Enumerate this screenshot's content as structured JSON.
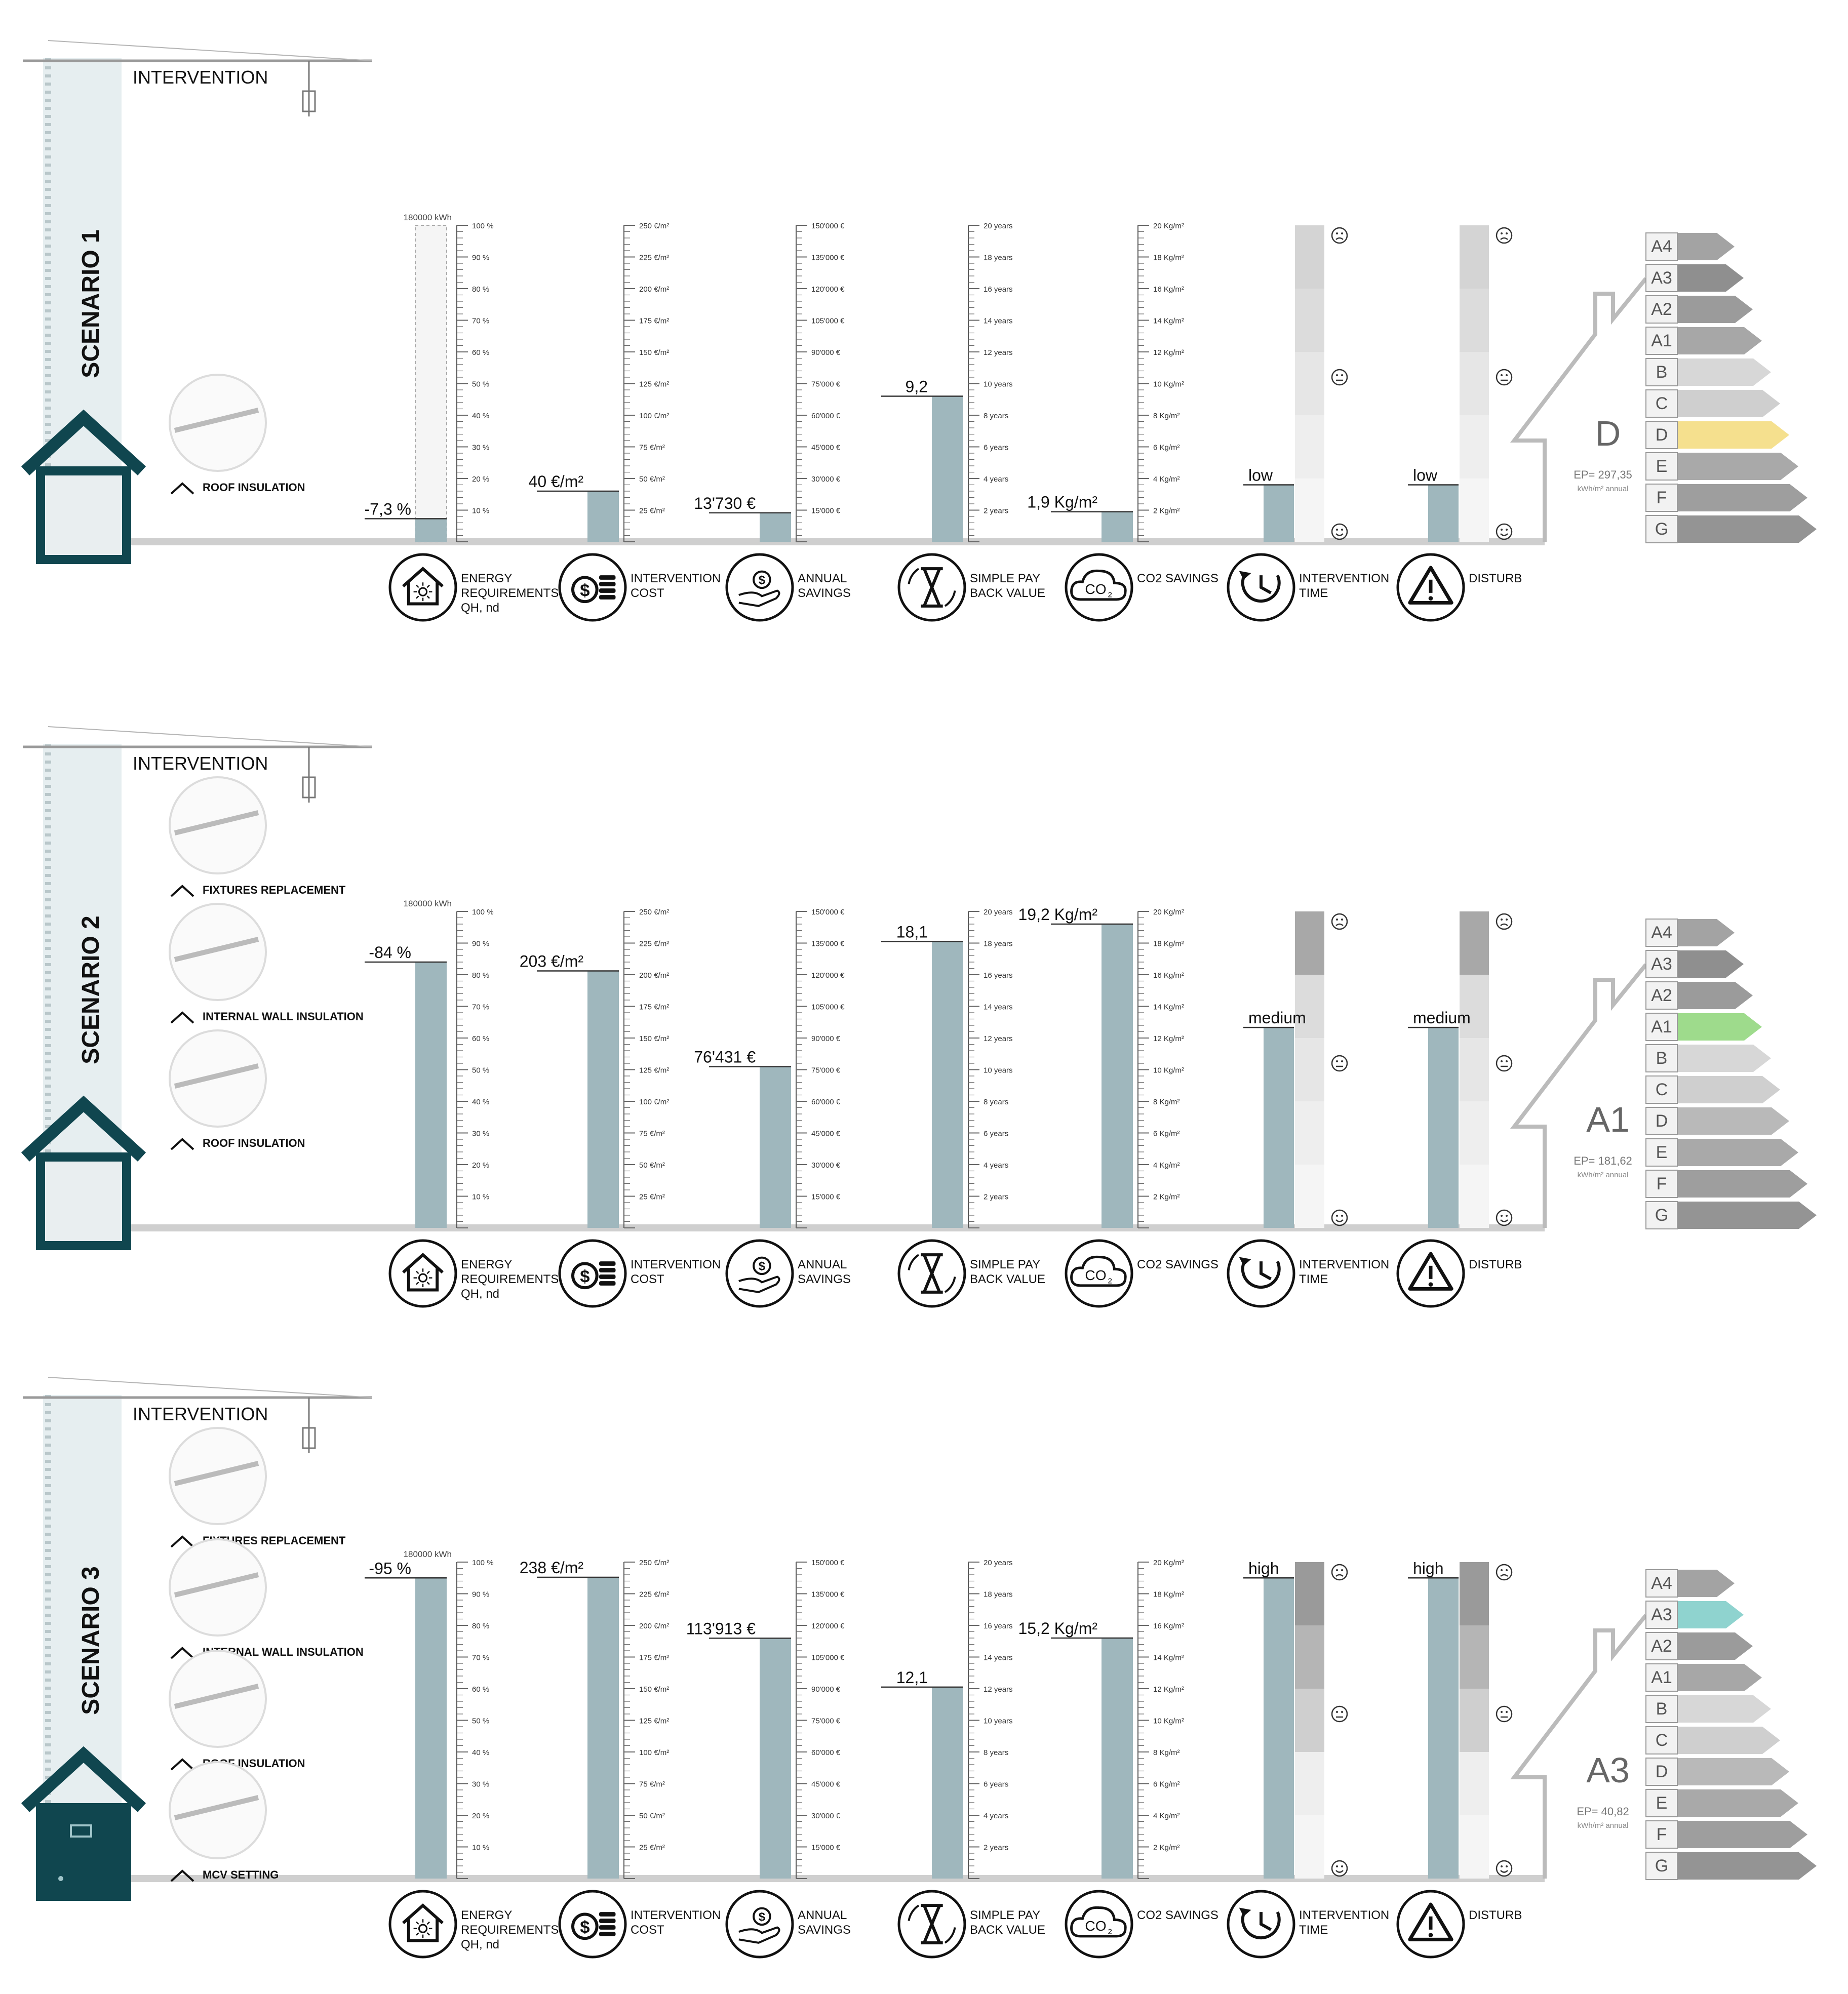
{
  "palette": {
    "bar": "#9fb7bd",
    "pillar": "#e6eef0",
    "house": "#10464f",
    "ground": "#cfcfcf",
    "energy_grey_dark": "#8a8a8a",
    "energy_grey_light": "#d8d8d8",
    "class_highlight_1": "#f5e08e",
    "class_highlight_2": "#9edb8c",
    "class_highlight_3": "#8fd3cf"
  },
  "common": {
    "intervention_title": "INTERVENTION",
    "axis_energy_top": "180000 kWh",
    "axis_energy": [
      "100 %",
      "90 %",
      "80 %",
      "70 %",
      "60 %",
      "50 %",
      "40 %",
      "30 %",
      "20 %",
      "10 %"
    ],
    "axis_cost": [
      "250 €/m²",
      "225 €/m²",
      "200 €/m²",
      "175 €/m²",
      "150 €/m²",
      "125 €/m²",
      "100 €/m²",
      "75 €/m²",
      "50 €/m²",
      "25 €/m²"
    ],
    "axis_savings": [
      "150'000 €",
      "135'000 €",
      "120'000 €",
      "105'000 €",
      "90'000 €",
      "75'000 €",
      "60'000 €",
      "45'000 €",
      "30'000 €",
      "15'000 €"
    ],
    "axis_payback": [
      "20 years",
      "18 years",
      "16 years",
      "14 years",
      "12 years",
      "10 years",
      "8 years",
      "6 years",
      "4 years",
      "2 years"
    ],
    "axis_co2": [
      "20 Kg/m²",
      "18 Kg/m²",
      "16 Kg/m²",
      "14 Kg/m²",
      "12 Kg/m²",
      "10 Kg/m²",
      "8 Kg/m²",
      "6 Kg/m²",
      "4 Kg/m²",
      "2 Kg/m²"
    ],
    "energy_classes": [
      "A4",
      "A3",
      "A2",
      "A1",
      "B",
      "C",
      "D",
      "E",
      "F",
      "G"
    ],
    "kpi_icons": [
      {
        "icon": "house-sun-icon",
        "label1": "ENERGY",
        "label2": "REQUIREMENTS",
        "label3": "QH, nd"
      },
      {
        "icon": "coins-icon",
        "label1": "INTERVENTION",
        "label2": "COST",
        "label3": ""
      },
      {
        "icon": "hand-coin-icon",
        "label1": "ANNUAL",
        "label2": "SAVINGS",
        "label3": ""
      },
      {
        "icon": "hourglass-icon",
        "label1": "SIMPLE PAY",
        "label2": "BACK VALUE",
        "label3": ""
      },
      {
        "icon": "co2-cloud-icon",
        "label1": "CO2 SAVINGS",
        "label2": "",
        "label3": ""
      },
      {
        "icon": "clock-icon",
        "label1": "INTERVENTION",
        "label2": "TIME",
        "label3": ""
      },
      {
        "icon": "warning-icon",
        "label1": "DISTURB",
        "label2": "",
        "label3": ""
      }
    ],
    "co2_text": "CO",
    "co2_sub": "2"
  },
  "scenarios": [
    {
      "title": "SCENARIO 1",
      "interventions": [
        "ROOF INSULATION"
      ],
      "energy_pct": 7.3,
      "energy_label": "-7,3 %",
      "cost": 40,
      "cost_label": "40 €/m²",
      "savings": 13730,
      "savings_label": "13'730 €",
      "payback": 9.2,
      "payback_label": "9,2",
      "co2": 1.9,
      "co2_label": "1,9 Kg/m²",
      "time_level": 1,
      "time_label": "low",
      "disturb_level": 1,
      "disturb_label": "low",
      "class": "D",
      "ep_label": "EP= 297,35",
      "ep_unit": "kWh/m² annual",
      "highlight_index": 6,
      "highlight_color": "#f5e08e"
    },
    {
      "title": "SCENARIO 2",
      "interventions": [
        "FIXTURES REPLACEMENT",
        "INTERNAL WALL INSULATION",
        "ROOF INSULATION"
      ],
      "energy_pct": 84,
      "energy_label": "-84 %",
      "cost": 203,
      "cost_label": "203 €/m²",
      "savings": 76431,
      "savings_label": "76'431 €",
      "payback": 18.1,
      "payback_label": "18,1",
      "co2": 19.2,
      "co2_label": "19,2 Kg/m²",
      "time_level": 2,
      "time_label": "medium",
      "disturb_level": 2,
      "disturb_label": "medium",
      "class": "A1",
      "ep_label": "EP= 181,62",
      "ep_unit": "kWh/m² annual",
      "highlight_index": 3,
      "highlight_color": "#9edb8c"
    },
    {
      "title": "SCENARIO 3",
      "interventions": [
        "FIXTURES REPLACEMENT",
        "INTERNAL WALL INSULATION",
        "ROOF INSULATION",
        "MCV SETTING"
      ],
      "energy_pct": 95,
      "energy_label": "-95 %",
      "cost": 238,
      "cost_label": "238 €/m²",
      "savings": 113913,
      "savings_label": "113'913 €",
      "payback": 12.1,
      "payback_label": "12,1",
      "co2": 15.2,
      "co2_label": "15,2 Kg/m²",
      "time_level": 3,
      "time_label": "high",
      "disturb_level": 3,
      "disturb_label": "high",
      "class": "A3",
      "ep_label": "EP= 40,82",
      "ep_unit": "kWh/m² annual",
      "highlight_index": 1,
      "highlight_color": "#8fd3cf"
    }
  ]
}
